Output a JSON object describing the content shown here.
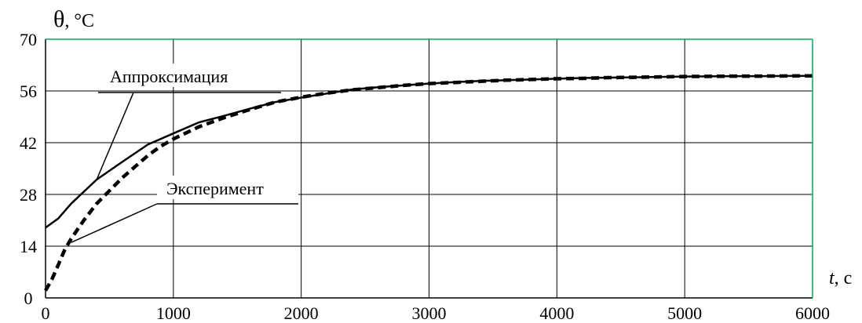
{
  "chart_data": {
    "type": "line",
    "title": "",
    "ylabel_symbol": "θ",
    "ylabel_unit": ", °C",
    "xlabel_var": "t",
    "xlabel_unit": ", с",
    "xlim": [
      0,
      6000
    ],
    "ylim": [
      0,
      70
    ],
    "xticks": [
      0,
      1000,
      2000,
      3000,
      4000,
      5000,
      6000
    ],
    "yticks": [
      0,
      14,
      28,
      42,
      56,
      70
    ],
    "grid": true,
    "plot_frame_color": "#00b050",
    "series": [
      {
        "name": "Аппроксимация",
        "style": "solid",
        "x": [
          0,
          100,
          200,
          400,
          600,
          800,
          1000,
          1200,
          1400,
          1600,
          1800,
          2000,
          2200,
          2400,
          2600,
          2800,
          3000,
          3200,
          3400,
          3600,
          3800,
          4000,
          4200,
          4400,
          4600,
          4800,
          5000,
          5200,
          5400,
          5600,
          5800,
          6000
        ],
        "y": [
          19,
          21.5,
          25.5,
          32,
          36.8,
          41.5,
          44.5,
          47.5,
          49.3,
          51.2,
          53,
          54.2,
          55.3,
          56.4,
          57,
          57.5,
          58,
          58.4,
          58.7,
          58.9,
          59.1,
          59.3,
          59.5,
          59.6,
          59.7,
          59.8,
          59.9,
          59.95,
          60,
          60,
          60.05,
          60.1
        ]
      },
      {
        "name": "Эксперимент",
        "style": "dashed",
        "x": [
          0,
          50,
          100,
          150,
          200,
          300,
          400,
          500,
          600,
          700,
          800,
          900,
          1000,
          1200,
          1400,
          1600,
          1800,
          2000,
          2200,
          2400,
          2600,
          2800,
          3000,
          3200,
          3400,
          3600,
          3800,
          4000,
          4200,
          4400,
          4600,
          4800,
          5000,
          5200,
          5400,
          5600,
          5800,
          6000
        ],
        "y": [
          2,
          5,
          9,
          13,
          16,
          21,
          25.5,
          29,
          32.5,
          35.5,
          38.5,
          41,
          43,
          46.3,
          48.8,
          51,
          53,
          54.3,
          55.4,
          56.3,
          56.9,
          57.5,
          58,
          58.3,
          58.6,
          58.9,
          59.1,
          59.3,
          59.4,
          59.6,
          59.7,
          59.8,
          59.9,
          59.95,
          60,
          60,
          60.05,
          60.1
        ]
      }
    ],
    "annotations": [
      {
        "text": "Аппроксимация",
        "series": 0,
        "target": [
          400,
          32
        ]
      },
      {
        "text": "Эксперимент",
        "series": 1,
        "target": [
          200,
          15
        ]
      }
    ]
  }
}
